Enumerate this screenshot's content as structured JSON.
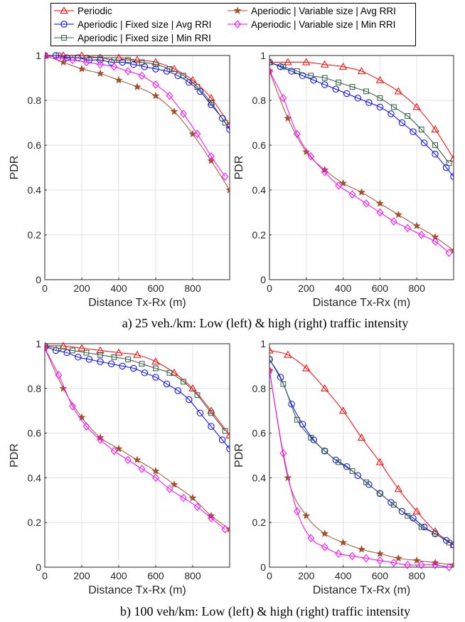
{
  "legend": [
    {
      "key": "periodic",
      "label": "Periodic"
    },
    {
      "key": "fixed_avg",
      "label": "Aperiodic | Fixed size | Avg RRI"
    },
    {
      "key": "fixed_min",
      "label": "Aperiodic | Fixed size | Min RRI"
    },
    {
      "key": "var_avg",
      "label": "Aperiodic | Variable size | Avg RRI"
    },
    {
      "key": "var_min",
      "label": "Aperiodic | Variable size | Min RRI"
    }
  ],
  "captions": {
    "top": "a) 25 veh./km: Low (left) & high (right) traffic intensity",
    "bottom": "b) 100 veh/km: Low (left) & high (right) traffic intensity"
  },
  "series_style": {
    "periodic": {
      "color": "#ff0000",
      "marker": "triangle"
    },
    "fixed_avg": {
      "color": "#0000ff",
      "marker": "circle"
    },
    "fixed_min": {
      "color": "#2f5a3f",
      "marker": "square"
    },
    "var_avg": {
      "color": "#a0522d",
      "marker": "star"
    },
    "var_min": {
      "color": "#ff00ff",
      "marker": "diamond"
    }
  },
  "chart_data": [
    {
      "type": "line",
      "xlabel": "Distance Tx-Rx (m)",
      "ylabel": "PDR",
      "xlim": [
        0,
        1000
      ],
      "ylim": [
        0,
        1
      ],
      "xticks": [
        0,
        200,
        400,
        600,
        800
      ],
      "yticks": [
        0,
        0.2,
        0.4,
        0.6,
        0.8,
        1
      ],
      "grid": true,
      "series": [
        {
          "key": "periodic",
          "x": [
            0,
            100,
            200,
            300,
            400,
            500,
            600,
            700,
            800,
            900,
            1000
          ],
          "y": [
            1,
            1,
            1,
            0.99,
            0.99,
            0.98,
            0.97,
            0.94,
            0.89,
            0.81,
            0.69
          ]
        },
        {
          "key": "fixed_avg",
          "x": [
            0,
            60,
            120,
            180,
            240,
            300,
            360,
            420,
            480,
            540,
            600,
            660,
            720,
            780,
            840,
            900,
            960,
            1000
          ],
          "y": [
            1,
            1,
            0.99,
            0.99,
            0.98,
            0.98,
            0.97,
            0.97,
            0.96,
            0.95,
            0.94,
            0.93,
            0.91,
            0.88,
            0.84,
            0.78,
            0.72,
            0.67
          ]
        },
        {
          "key": "fixed_min",
          "x": [
            0,
            75,
            150,
            225,
            300,
            375,
            450,
            525,
            600,
            675,
            750,
            825,
            900,
            975
          ],
          "y": [
            1,
            1,
            0.99,
            0.99,
            0.99,
            0.98,
            0.98,
            0.97,
            0.96,
            0.94,
            0.91,
            0.86,
            0.79,
            0.7
          ]
        },
        {
          "key": "var_avg",
          "x": [
            0,
            100,
            200,
            300,
            400,
            500,
            600,
            700,
            800,
            900,
            1000
          ],
          "y": [
            1,
            0.97,
            0.94,
            0.92,
            0.89,
            0.86,
            0.82,
            0.75,
            0.65,
            0.53,
            0.4
          ]
        },
        {
          "key": "var_min",
          "x": [
            0,
            75,
            150,
            225,
            300,
            375,
            450,
            525,
            600,
            675,
            750,
            825,
            900,
            975
          ],
          "y": [
            1,
            0.99,
            0.98,
            0.97,
            0.96,
            0.95,
            0.93,
            0.91,
            0.87,
            0.82,
            0.74,
            0.65,
            0.55,
            0.46
          ]
        }
      ]
    },
    {
      "type": "line",
      "xlabel": "Distance Tx-Rx (m)",
      "ylabel": "PDR",
      "xlim": [
        0,
        1000
      ],
      "ylim": [
        0,
        1
      ],
      "xticks": [
        0,
        200,
        400,
        600,
        800
      ],
      "yticks": [
        0,
        0.2,
        0.4,
        0.6,
        0.8,
        1
      ],
      "grid": true,
      "series": [
        {
          "key": "periodic",
          "x": [
            0,
            100,
            200,
            300,
            400,
            500,
            600,
            700,
            800,
            900,
            1000
          ],
          "y": [
            0.97,
            0.97,
            0.97,
            0.96,
            0.95,
            0.93,
            0.89,
            0.84,
            0.77,
            0.67,
            0.54
          ]
        },
        {
          "key": "fixed_avg",
          "x": [
            0,
            60,
            120,
            180,
            240,
            300,
            360,
            420,
            480,
            540,
            600,
            660,
            720,
            780,
            840,
            900,
            960,
            1000
          ],
          "y": [
            0.97,
            0.95,
            0.93,
            0.91,
            0.89,
            0.87,
            0.85,
            0.83,
            0.81,
            0.79,
            0.77,
            0.74,
            0.7,
            0.66,
            0.61,
            0.56,
            0.5,
            0.46
          ]
        },
        {
          "key": "fixed_min",
          "x": [
            0,
            75,
            150,
            225,
            300,
            375,
            450,
            525,
            600,
            675,
            750,
            825,
            900,
            975
          ],
          "y": [
            0.97,
            0.95,
            0.93,
            0.91,
            0.9,
            0.88,
            0.86,
            0.84,
            0.81,
            0.77,
            0.73,
            0.67,
            0.6,
            0.52
          ]
        },
        {
          "key": "var_avg",
          "x": [
            0,
            100,
            200,
            300,
            400,
            500,
            600,
            700,
            800,
            900,
            1000
          ],
          "y": [
            0.93,
            0.72,
            0.57,
            0.49,
            0.43,
            0.39,
            0.34,
            0.29,
            0.24,
            0.19,
            0.13
          ]
        },
        {
          "key": "var_min",
          "x": [
            0,
            75,
            150,
            225,
            300,
            375,
            450,
            525,
            600,
            675,
            750,
            825,
            900,
            975
          ],
          "y": [
            0.93,
            0.81,
            0.65,
            0.55,
            0.48,
            0.42,
            0.38,
            0.34,
            0.3,
            0.26,
            0.23,
            0.2,
            0.17,
            0.12
          ]
        }
      ]
    },
    {
      "type": "line",
      "xlabel": "Distance Tx-Rx (m)",
      "ylabel": "PDR",
      "xlim": [
        0,
        1000
      ],
      "ylim": [
        0,
        1
      ],
      "xticks": [
        0,
        200,
        400,
        600,
        800
      ],
      "yticks": [
        0,
        0.2,
        0.4,
        0.6,
        0.8,
        1
      ],
      "grid": true,
      "series": [
        {
          "key": "periodic",
          "x": [
            0,
            100,
            200,
            300,
            400,
            500,
            600,
            700,
            800,
            900,
            1000
          ],
          "y": [
            0.99,
            0.99,
            0.98,
            0.97,
            0.96,
            0.95,
            0.92,
            0.87,
            0.8,
            0.7,
            0.59
          ]
        },
        {
          "key": "fixed_avg",
          "x": [
            0,
            60,
            120,
            180,
            240,
            300,
            360,
            420,
            480,
            540,
            600,
            660,
            720,
            780,
            840,
            900,
            960,
            1000
          ],
          "y": [
            0.99,
            0.97,
            0.96,
            0.94,
            0.93,
            0.92,
            0.91,
            0.9,
            0.89,
            0.87,
            0.85,
            0.82,
            0.79,
            0.75,
            0.69,
            0.63,
            0.57,
            0.53
          ]
        },
        {
          "key": "fixed_min",
          "x": [
            0,
            75,
            150,
            225,
            300,
            375,
            450,
            525,
            600,
            675,
            750,
            825,
            900,
            975
          ],
          "y": [
            0.99,
            0.98,
            0.97,
            0.96,
            0.95,
            0.94,
            0.93,
            0.91,
            0.89,
            0.87,
            0.83,
            0.77,
            0.69,
            0.61
          ]
        },
        {
          "key": "var_avg",
          "x": [
            0,
            100,
            200,
            300,
            400,
            500,
            600,
            700,
            800,
            900,
            1000
          ],
          "y": [
            0.98,
            0.8,
            0.67,
            0.58,
            0.53,
            0.48,
            0.43,
            0.37,
            0.31,
            0.23,
            0.17
          ]
        },
        {
          "key": "var_min",
          "x": [
            0,
            75,
            150,
            225,
            300,
            375,
            450,
            525,
            600,
            675,
            750,
            825,
            900,
            975
          ],
          "y": [
            0.98,
            0.86,
            0.72,
            0.63,
            0.57,
            0.52,
            0.48,
            0.44,
            0.4,
            0.35,
            0.31,
            0.27,
            0.22,
            0.17
          ]
        }
      ]
    },
    {
      "type": "line",
      "xlabel": "Distance Tx-Rx (m)",
      "ylabel": "PDR",
      "xlim": [
        0,
        1000
      ],
      "ylim": [
        0,
        1
      ],
      "xticks": [
        0,
        200,
        400,
        600,
        800
      ],
      "yticks": [
        0,
        0.2,
        0.4,
        0.6,
        0.8,
        1
      ],
      "grid": true,
      "series": [
        {
          "key": "periodic",
          "x": [
            0,
            100,
            200,
            300,
            400,
            500,
            600,
            700,
            800,
            900,
            1000
          ],
          "y": [
            0.97,
            0.95,
            0.89,
            0.8,
            0.7,
            0.58,
            0.47,
            0.35,
            0.25,
            0.16,
            0.1
          ]
        },
        {
          "key": "fixed_avg",
          "x": [
            0,
            60,
            120,
            180,
            240,
            300,
            360,
            420,
            480,
            540,
            600,
            660,
            720,
            780,
            840,
            900,
            960,
            1000
          ],
          "y": [
            0.93,
            0.85,
            0.73,
            0.64,
            0.57,
            0.52,
            0.48,
            0.45,
            0.41,
            0.37,
            0.33,
            0.29,
            0.25,
            0.22,
            0.18,
            0.15,
            0.12,
            0.1
          ]
        },
        {
          "key": "fixed_min",
          "x": [
            0,
            75,
            150,
            225,
            300,
            375,
            450,
            525,
            600,
            675,
            750,
            825,
            900,
            975
          ],
          "y": [
            0.93,
            0.82,
            0.66,
            0.58,
            0.52,
            0.47,
            0.43,
            0.38,
            0.33,
            0.28,
            0.23,
            0.18,
            0.15,
            0.11
          ]
        },
        {
          "key": "var_avg",
          "x": [
            0,
            100,
            200,
            300,
            400,
            500,
            600,
            700,
            800,
            900,
            1000
          ],
          "y": [
            0.88,
            0.4,
            0.23,
            0.15,
            0.11,
            0.08,
            0.06,
            0.04,
            0.03,
            0.02,
            0.01
          ]
        },
        {
          "key": "var_min",
          "x": [
            0,
            75,
            150,
            225,
            300,
            375,
            450,
            525,
            600,
            675,
            750,
            825,
            900,
            975
          ],
          "y": [
            0.88,
            0.51,
            0.25,
            0.13,
            0.09,
            0.06,
            0.05,
            0.04,
            0.03,
            0.02,
            0.01,
            0.01,
            0.01,
            0
          ]
        }
      ]
    }
  ]
}
